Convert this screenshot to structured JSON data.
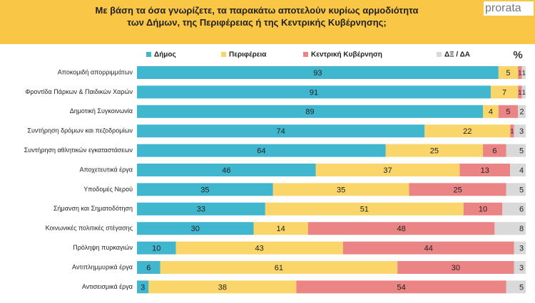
{
  "chart_data": {
    "type": "stacked-barh",
    "title": "Με βάση τα όσα γνωρίζετε, τα παρακάτω αποτελούν κυρίως αρμοδιότητα των Δήμων, της Περιφέρειας ή της Κεντρικής Κυβέρνησης;",
    "brand": "prorata",
    "unit_label": "%",
    "categories": [
      "Αποκομιδή απορριμμάτων",
      "Φροντίδα Πάρκων & Παιδικών Χαρών",
      "Δημοτική Συγκοινωνία",
      "Συντήρηση δρόμων και πεζοδρομίων",
      "Συντήρηση αθλητικών εγκαταστάσεων",
      "Αποχετευτικά έργα",
      "Υποδομές Νερού",
      "Σήμανση και Σηματοδότηση",
      "Κοινωνικές πολιτικές στέγασης",
      "Πρόληψη πυρκαγιών",
      "Αντιπλημμυρικά έργα",
      "Αντισεισμικά έργα"
    ],
    "xlim": [
      0,
      100
    ],
    "series": [
      {
        "name": "Δήμος",
        "color": "#41b6cf",
        "values": [
          93,
          91,
          89,
          74,
          64,
          46,
          35,
          33,
          30,
          10,
          6,
          3
        ]
      },
      {
        "name": "Περιφέρεια",
        "color": "#fad66a",
        "values": [
          5,
          7,
          4,
          22,
          25,
          37,
          35,
          51,
          14,
          43,
          61,
          38
        ]
      },
      {
        "name": "Κεντρική Κυβέρνηση",
        "color": "#eb8585",
        "values": [
          1,
          1,
          5,
          1,
          6,
          13,
          25,
          10,
          48,
          44,
          30,
          54
        ]
      },
      {
        "name": "ΔΞ / ΔΑ",
        "color": "#d9d9d9",
        "values": [
          1,
          1,
          2,
          3,
          5,
          4,
          5,
          6,
          8,
          3,
          3,
          5
        ]
      }
    ]
  }
}
